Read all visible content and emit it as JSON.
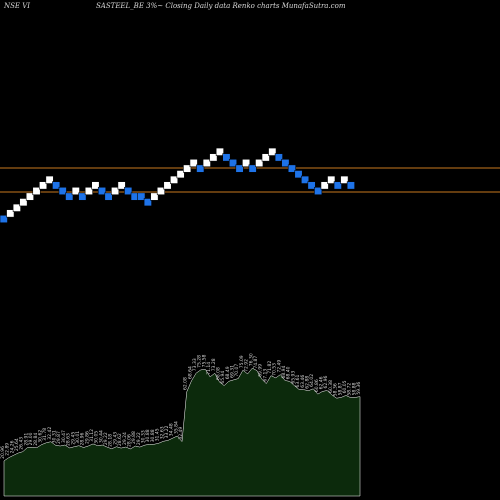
{
  "header": {
    "left": "NSE VI",
    "center": "SASTEEL_BE 3%~  Closing Daily data  Renko  charts MunafaSutra.com"
  },
  "colors": {
    "background": "#000000",
    "up_brick": "#ffffff",
    "down_brick": "#1e73e8",
    "reference_line": "#c8781e",
    "volume_fill": "#0c2a0c",
    "volume_outline": "#ffffff",
    "text": "#d8d8d8"
  },
  "chart_data": {
    "type": "renko",
    "brick_size": "3%",
    "reference_lines": [
      "upper",
      "lower"
    ],
    "bricks": [
      {
        "level": 0,
        "dir": "down"
      },
      {
        "level": 1,
        "dir": "up"
      },
      {
        "level": 2,
        "dir": "up"
      },
      {
        "level": 3,
        "dir": "up"
      },
      {
        "level": 4,
        "dir": "up"
      },
      {
        "level": 5,
        "dir": "up"
      },
      {
        "level": 6,
        "dir": "up"
      },
      {
        "level": 7,
        "dir": "up"
      },
      {
        "level": 6,
        "dir": "down"
      },
      {
        "level": 5,
        "dir": "down"
      },
      {
        "level": 4,
        "dir": "down"
      },
      {
        "level": 5,
        "dir": "up"
      },
      {
        "level": 4,
        "dir": "down"
      },
      {
        "level": 5,
        "dir": "up"
      },
      {
        "level": 6,
        "dir": "up"
      },
      {
        "level": 5,
        "dir": "down"
      },
      {
        "level": 4,
        "dir": "down"
      },
      {
        "level": 5,
        "dir": "up"
      },
      {
        "level": 6,
        "dir": "up"
      },
      {
        "level": 5,
        "dir": "down"
      },
      {
        "level": 4,
        "dir": "down"
      },
      {
        "level": 4,
        "dir": "down"
      },
      {
        "level": 3,
        "dir": "down"
      },
      {
        "level": 4,
        "dir": "up"
      },
      {
        "level": 5,
        "dir": "up"
      },
      {
        "level": 6,
        "dir": "up"
      },
      {
        "level": 7,
        "dir": "up"
      },
      {
        "level": 8,
        "dir": "up"
      },
      {
        "level": 9,
        "dir": "up"
      },
      {
        "level": 10,
        "dir": "up"
      },
      {
        "level": 9,
        "dir": "down"
      },
      {
        "level": 10,
        "dir": "up"
      },
      {
        "level": 11,
        "dir": "up"
      },
      {
        "level": 12,
        "dir": "up"
      },
      {
        "level": 11,
        "dir": "down"
      },
      {
        "level": 10,
        "dir": "down"
      },
      {
        "level": 9,
        "dir": "down"
      },
      {
        "level": 10,
        "dir": "up"
      },
      {
        "level": 9,
        "dir": "down"
      },
      {
        "level": 10,
        "dir": "up"
      },
      {
        "level": 11,
        "dir": "up"
      },
      {
        "level": 12,
        "dir": "up"
      },
      {
        "level": 11,
        "dir": "down"
      },
      {
        "level": 10,
        "dir": "down"
      },
      {
        "level": 9,
        "dir": "down"
      },
      {
        "level": 8,
        "dir": "down"
      },
      {
        "level": 7,
        "dir": "down"
      },
      {
        "level": 6,
        "dir": "down"
      },
      {
        "level": 5,
        "dir": "down"
      },
      {
        "level": 6,
        "dir": "up"
      },
      {
        "level": 7,
        "dir": "up"
      },
      {
        "level": 6,
        "dir": "down"
      },
      {
        "level": 7,
        "dir": "up"
      },
      {
        "level": 6,
        "dir": "down"
      }
    ],
    "volume": {
      "labels": [
        "20.96",
        "22.89",
        "24.26",
        "25.64",
        "26.43",
        "28.91",
        "29.00",
        "28.84",
        "30.62",
        "31.78",
        "32.42",
        "30.31",
        "29.87",
        "30.47",
        "28.63",
        "29.45",
        "30.01",
        "28.96",
        "29.86",
        "31.12",
        "30.05",
        "30.44",
        "29.22",
        "28.18",
        "29.43",
        "28.62",
        "29.24",
        "28.06",
        "29.88",
        "29.22",
        "30.33",
        "30.88",
        "30.88",
        "31.45",
        "32.63",
        "33.22",
        "34.48",
        "35.84",
        "32.49",
        "62.08",
        "68.64",
        "73.33",
        "75.28",
        "75.58",
        "71.14",
        "73.28",
        "68.08",
        "65.94",
        "68.49",
        "69.31",
        "70.07",
        "75.09",
        "72.92",
        "76.30",
        "74.87",
        "69.99",
        "67.13",
        "71.82",
        "70.53",
        "72.49",
        "68.94",
        "68.40",
        "65.93",
        "63.61",
        "63.46",
        "62.88",
        "64.02",
        "60.86",
        "62.46",
        "62.96",
        "60.38",
        "58.36",
        "58.87",
        "60.05",
        "58.72",
        "58.88",
        "59.36"
      ]
    }
  }
}
